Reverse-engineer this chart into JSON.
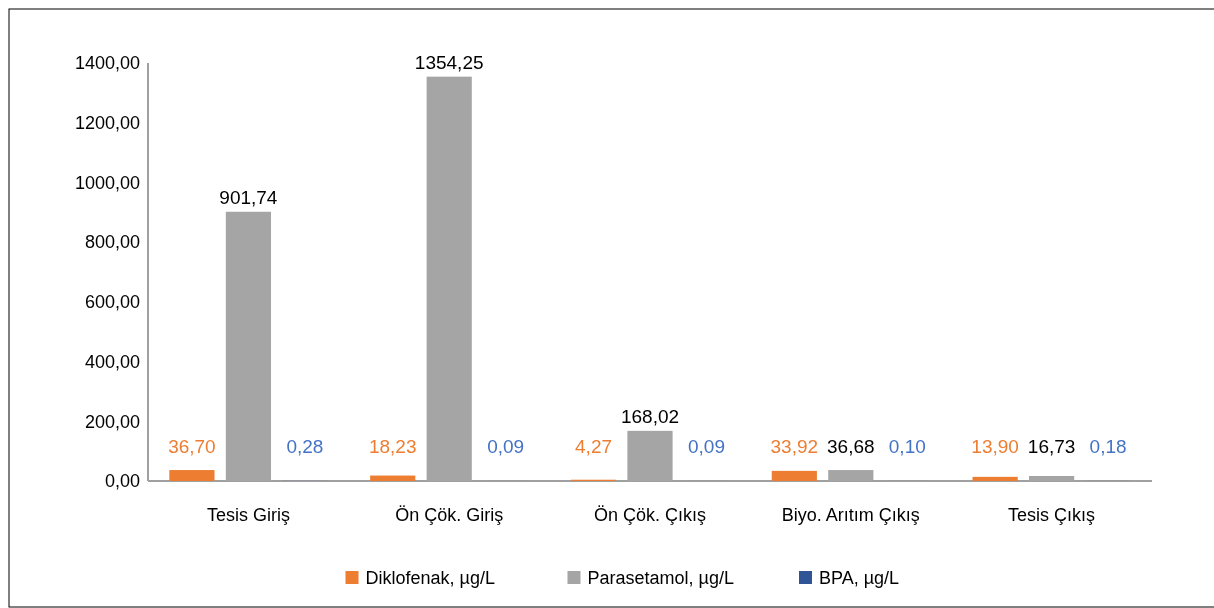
{
  "chart_data": {
    "type": "bar",
    "categories": [
      "Tesis Giriş",
      "Ön Çök. Giriş",
      "Ön Çök. Çıkış",
      "Biyo. Arıtım Çıkış",
      "Tesis Çıkış"
    ],
    "series": [
      {
        "name": "Diklofenak, µg/L",
        "color": "#ed7d31",
        "values": [
          36.7,
          18.23,
          4.27,
          33.92,
          13.9
        ],
        "value_labels": [
          "36,70",
          "18,23",
          "4,27",
          "33,92",
          "13,90"
        ]
      },
      {
        "name": "Parasetamol, µg/L",
        "color": "#a5a5a5",
        "values": [
          901.74,
          1354.25,
          168.02,
          36.68,
          16.73
        ],
        "value_labels": [
          "901,74",
          "1354,25",
          "168,02",
          "36,68",
          "16,73"
        ]
      },
      {
        "name": "BPA, µg/L",
        "color": "#2f5597",
        "values": [
          0.28,
          0.09,
          0.09,
          0.1,
          0.18
        ],
        "value_labels": [
          "0,28",
          "0,09",
          "0,09",
          "0,10",
          "0,18"
        ]
      }
    ],
    "ylim": [
      0,
      1400
    ],
    "yticks": [
      {
        "value": 0,
        "label": "0,00"
      },
      {
        "value": 200,
        "label": "200,00"
      },
      {
        "value": 400,
        "label": "400,00"
      },
      {
        "value": 600,
        "label": "600,00"
      },
      {
        "value": 800,
        "label": "800,00"
      },
      {
        "value": 1000,
        "label": "1000,00"
      },
      {
        "value": 1200,
        "label": "1200,00"
      },
      {
        "value": 1400,
        "label": "1400,00"
      }
    ],
    "grid": false,
    "legend": "bottom"
  }
}
